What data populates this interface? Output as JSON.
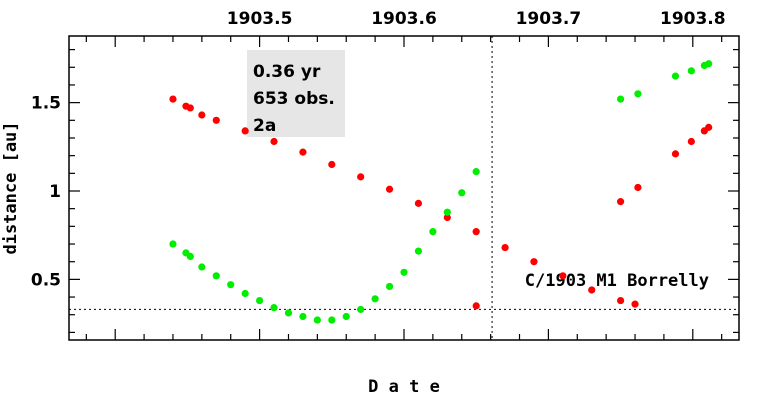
{
  "chart_data": {
    "type": "scatter",
    "xlabel": "D a t e",
    "ylabel": "distance [au]",
    "xlim": [
      1903.368,
      1903.832
    ],
    "ylim": [
      0.157,
      1.877
    ],
    "x_ticks": [
      {
        "value": 1903.5,
        "label": "1903.5"
      },
      {
        "value": 1903.6,
        "label": "1903.6"
      },
      {
        "value": 1903.7,
        "label": "1903.7"
      },
      {
        "value": 1903.8,
        "label": "1903.8"
      }
    ],
    "y_ticks": [
      {
        "value": 0.5,
        "label": "0.5"
      },
      {
        "value": 1.0,
        "label": "1"
      },
      {
        "value": 1.5,
        "label": "1.5"
      }
    ],
    "info_box": [
      "0.36 yr",
      "653 obs.",
      "2a"
    ],
    "object_label": "C/1903 M1 Borrelly",
    "reference_lines": {
      "vertical_x": 1903.661,
      "horizontal_y": 0.33
    },
    "series": [
      {
        "color": "#ff0000",
        "points": [
          [
            1903.44,
            1.52
          ],
          [
            1903.449,
            1.48
          ],
          [
            1903.452,
            1.47
          ],
          [
            1903.46,
            1.43
          ],
          [
            1903.47,
            1.4
          ],
          [
            1903.49,
            1.34
          ],
          [
            1903.51,
            1.28
          ],
          [
            1903.53,
            1.22
          ],
          [
            1903.55,
            1.15
          ],
          [
            1903.57,
            1.08
          ],
          [
            1903.59,
            1.01
          ],
          [
            1903.61,
            0.93
          ],
          [
            1903.63,
            0.85
          ],
          [
            1903.65,
            0.77
          ],
          [
            1903.67,
            0.68
          ],
          [
            1903.69,
            0.6
          ],
          [
            1903.71,
            0.52
          ],
          [
            1903.73,
            0.44
          ],
          [
            1903.75,
            0.38
          ],
          [
            1903.76,
            0.36
          ],
          [
            1903.65,
            0.35
          ],
          [
            1903.75,
            0.94
          ],
          [
            1903.762,
            1.02
          ],
          [
            1903.788,
            1.21
          ],
          [
            1903.799,
            1.28
          ],
          [
            1903.808,
            1.34
          ],
          [
            1903.811,
            1.36
          ]
        ]
      },
      {
        "color": "#00ee00",
        "points": [
          [
            1903.44,
            0.7
          ],
          [
            1903.449,
            0.65
          ],
          [
            1903.452,
            0.63
          ],
          [
            1903.46,
            0.57
          ],
          [
            1903.47,
            0.52
          ],
          [
            1903.48,
            0.47
          ],
          [
            1903.49,
            0.42
          ],
          [
            1903.5,
            0.38
          ],
          [
            1903.51,
            0.34
          ],
          [
            1903.52,
            0.31
          ],
          [
            1903.53,
            0.29
          ],
          [
            1903.54,
            0.27
          ],
          [
            1903.55,
            0.27
          ],
          [
            1903.56,
            0.29
          ],
          [
            1903.57,
            0.33
          ],
          [
            1903.58,
            0.39
          ],
          [
            1903.59,
            0.46
          ],
          [
            1903.6,
            0.54
          ],
          [
            1903.61,
            0.66
          ],
          [
            1903.62,
            0.77
          ],
          [
            1903.63,
            0.88
          ],
          [
            1903.64,
            0.99
          ],
          [
            1903.65,
            1.11
          ],
          [
            1903.75,
            1.52
          ],
          [
            1903.762,
            1.55
          ],
          [
            1903.788,
            1.65
          ],
          [
            1903.799,
            1.68
          ],
          [
            1903.808,
            1.71
          ],
          [
            1903.811,
            1.72
          ]
        ]
      }
    ]
  },
  "colors": {
    "frame": "#000000",
    "info_box_bg": "#e6e6e6"
  }
}
